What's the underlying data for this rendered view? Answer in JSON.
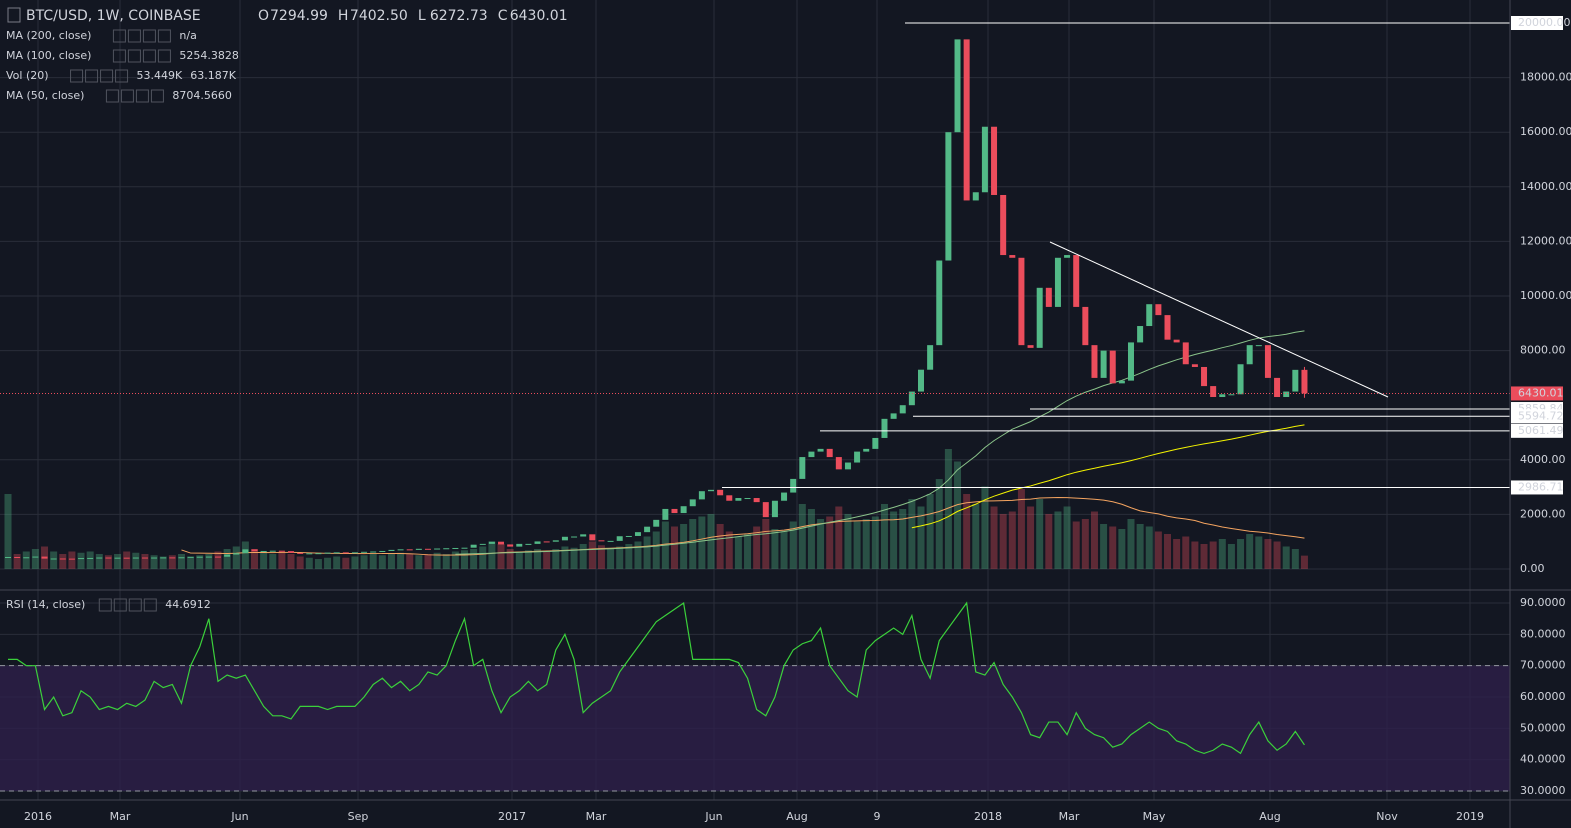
{
  "chart_data": {
    "type": "candlestick",
    "symbol": "BTC/USD, 1W, COINBASE",
    "ohlc_labels": {
      "o": "O",
      "h": "H",
      "l": "L",
      "c": "C"
    },
    "high": 7402.5,
    "low": 6272.73,
    "high_label": "7402.50",
    "low_label": "6272.73",
    "indicators": [
      {
        "name": "MA (200, close)",
        "value": "n/a",
        "color": "#ffffff"
      },
      {
        "name": "MA (100, close)",
        "value": "5254.3828",
        "color": "#f5f500"
      },
      {
        "name": "Vol (20)",
        "value": "53.449K",
        "value2": "63.187K",
        "color": "#eb4d5c",
        "color2": "#f4a460"
      },
      {
        "name": "MA (50, close)",
        "value": "8704.5660",
        "color": "#8bc48a"
      }
    ],
    "closes": [
      440,
      430,
      430,
      455,
      380,
      385,
      380,
      375,
      400,
      405,
      420,
      410,
      415,
      410,
      420,
      415,
      420,
      425,
      420,
      430,
      445,
      450,
      455,
      450,
      530,
      580,
      720,
      650,
      660,
      670,
      655,
      590,
      570,
      575,
      580,
      600,
      610,
      605,
      610,
      630,
      640,
      660,
      700,
      720,
      700,
      740,
      730,
      750,
      760,
      770,
      780,
      890,
      920,
      1000,
      900,
      820,
      920,
      920,
      1010,
      1000,
      1050,
      1180,
      1190,
      1270,
      1050,
      1020,
      1030,
      1200,
      1210,
      1350,
      1550,
      1800,
      2200,
      2050,
      2300,
      2550,
      2850,
      2900,
      2700,
      2500,
      2600,
      2600,
      2450,
      1900,
      2500,
      2800,
      3300,
      4100,
      4300,
      4400,
      4100,
      3650,
      3900,
      4300,
      4400,
      4800,
      5500,
      5700,
      6000,
      6500,
      7300,
      8200,
      11300,
      16000,
      19400,
      13500,
      13800,
      16200,
      13700,
      11500,
      11400,
      8200,
      8100,
      10300,
      9600,
      11400,
      11500,
      9600,
      8200,
      7000,
      8000,
      6800,
      6900,
      8300,
      8900,
      9700,
      9300,
      8400,
      8300,
      7500,
      7400,
      6700,
      6300,
      6400,
      6400,
      7500,
      8200,
      8200,
      7000,
      6300,
      6500,
      7294.99,
      6430.01
    ],
    "close_labels": {
      "141": "7294.99",
      "142": "6430.01"
    },
    "volume": [
      300,
      60,
      70,
      80,
      90,
      70,
      60,
      70,
      65,
      70,
      60,
      55,
      60,
      70,
      65,
      60,
      55,
      50,
      55,
      60,
      50,
      55,
      60,
      70,
      80,
      90,
      110,
      80,
      70,
      60,
      70,
      60,
      50,
      45,
      40,
      45,
      50,
      45,
      50,
      55,
      60,
      55,
      60,
      65,
      60,
      55,
      60,
      65,
      60,
      70,
      75,
      80,
      90,
      110,
      100,
      80,
      70,
      75,
      80,
      70,
      80,
      90,
      85,
      100,
      110,
      95,
      80,
      90,
      100,
      110,
      130,
      150,
      190,
      170,
      180,
      200,
      210,
      220,
      180,
      150,
      130,
      140,
      170,
      200,
      160,
      150,
      190,
      260,
      240,
      200,
      210,
      250,
      220,
      190,
      200,
      210,
      260,
      230,
      240,
      280,
      250,
      300,
      360,
      480,
      430,
      300,
      260,
      330,
      250,
      220,
      230,
      320,
      250,
      280,
      220,
      230,
      250,
      190,
      200,
      230,
      180,
      170,
      160,
      200,
      180,
      170,
      150,
      140,
      120,
      130,
      110,
      100,
      110,
      120,
      100,
      120,
      140,
      130,
      120,
      110,
      90,
      80,
      53.449
    ],
    "rsi_name": "RSI (14, close)",
    "rsi": [
      72,
      72,
      70,
      70,
      56,
      60,
      54,
      55,
      62,
      60,
      56,
      57,
      56,
      58,
      57,
      59,
      65,
      63,
      64,
      58,
      70,
      76,
      85,
      65,
      67,
      66,
      67,
      62,
      57,
      54,
      54,
      53,
      57,
      57,
      57,
      56,
      57,
      57,
      57,
      60,
      64,
      66,
      63,
      65,
      62,
      64,
      68,
      67,
      70,
      78,
      85,
      70,
      72,
      62,
      55,
      60,
      62,
      65,
      62,
      64,
      75,
      80,
      72,
      55,
      58,
      60,
      62,
      68,
      72,
      76,
      80,
      84,
      86,
      88,
      90,
      72,
      72,
      72,
      72,
      72,
      71,
      66,
      56,
      54,
      60,
      70,
      75,
      77,
      78,
      82,
      70,
      66,
      62,
      60,
      75,
      78,
      80,
      82,
      80,
      86,
      72,
      66,
      78,
      82,
      86,
      90,
      68,
      67,
      71,
      64,
      60,
      55,
      48,
      47,
      52,
      52,
      48,
      55,
      50,
      48,
      47,
      44,
      45,
      48,
      50,
      52,
      50,
      49,
      46,
      45,
      43,
      42,
      43,
      45,
      44,
      42,
      48,
      52,
      46,
      43,
      45,
      49,
      44.6912
    ],
    "rsi_color": "#3bd13b",
    "ylim": [
      0,
      20000
    ],
    "yticks": [
      {
        "value": 0,
        "label": "0.00"
      },
      {
        "value": 2000,
        "label": "2000.00"
      },
      {
        "value": 4000,
        "label": "4000.00"
      },
      {
        "value": 8000,
        "label": "8000.00"
      },
      {
        "value": 10000,
        "label": "10000.00"
      },
      {
        "value": 12000,
        "label": "12000.00"
      },
      {
        "value": 14000,
        "label": "14000.00"
      },
      {
        "value": 16000,
        "label": "16000.00"
      },
      {
        "value": 18000,
        "label": "18000.00"
      }
    ],
    "levels": [
      {
        "value": 20000,
        "label": "20000.00"
      },
      {
        "value": 5859.84,
        "label": "5859.84"
      },
      {
        "value": 5594.72,
        "label": "5594.72"
      },
      {
        "value": 5061.49,
        "label": "5061.49"
      },
      {
        "value": 2986.71,
        "label": "2986.71"
      }
    ],
    "rsi_ylim": [
      30,
      90
    ],
    "rsi_yticks": [
      {
        "value": 90,
        "label": "90.0000"
      },
      {
        "value": 80,
        "label": "80.0000"
      },
      {
        "value": 70,
        "label": "70.0000"
      },
      {
        "value": 60,
        "label": "60.0000"
      },
      {
        "value": 50,
        "label": "50.0000"
      },
      {
        "value": 40,
        "label": "40.0000"
      },
      {
        "value": 30,
        "label": "30.0000"
      }
    ],
    "rsi_band": [
      70,
      30
    ],
    "time_labels": [
      "2016",
      "Mar",
      "Jun",
      "Sep",
      "2017",
      "Mar",
      "Jun",
      "Aug",
      "9",
      "2018",
      "Mar",
      "May",
      "Aug",
      "Nov",
      "2019"
    ],
    "up_color": "#53b987",
    "down_color": "#eb4d5c",
    "grid": true
  }
}
